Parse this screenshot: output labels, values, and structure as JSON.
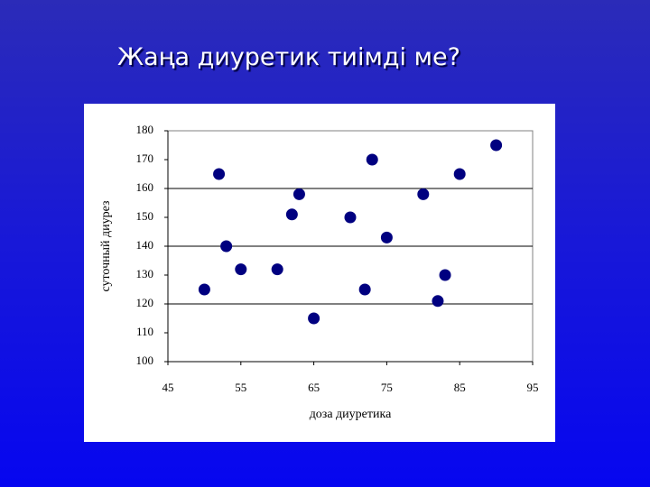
{
  "slide_title": "Жаңа диуретик тиімді ме?",
  "chart_data": {
    "type": "scatter",
    "x_label": "доза диуретика",
    "y_label": "суточный диурез",
    "x": [
      50,
      52,
      53,
      55,
      60,
      62,
      63,
      65,
      70,
      72,
      73,
      75,
      80,
      82,
      83,
      85,
      90
    ],
    "values": [
      125,
      165,
      140,
      132,
      132,
      151,
      158,
      115,
      150,
      125,
      170,
      143,
      158,
      121,
      130,
      165,
      175
    ],
    "color": "#000080",
    "xlim": [
      45,
      95
    ],
    "xticks": [
      45,
      55,
      65,
      75,
      85,
      95
    ],
    "ylim": [
      100,
      180
    ],
    "yticks": [
      100,
      110,
      120,
      130,
      140,
      150,
      160,
      170,
      180
    ],
    "ygrid": [
      120,
      140,
      160
    ]
  }
}
